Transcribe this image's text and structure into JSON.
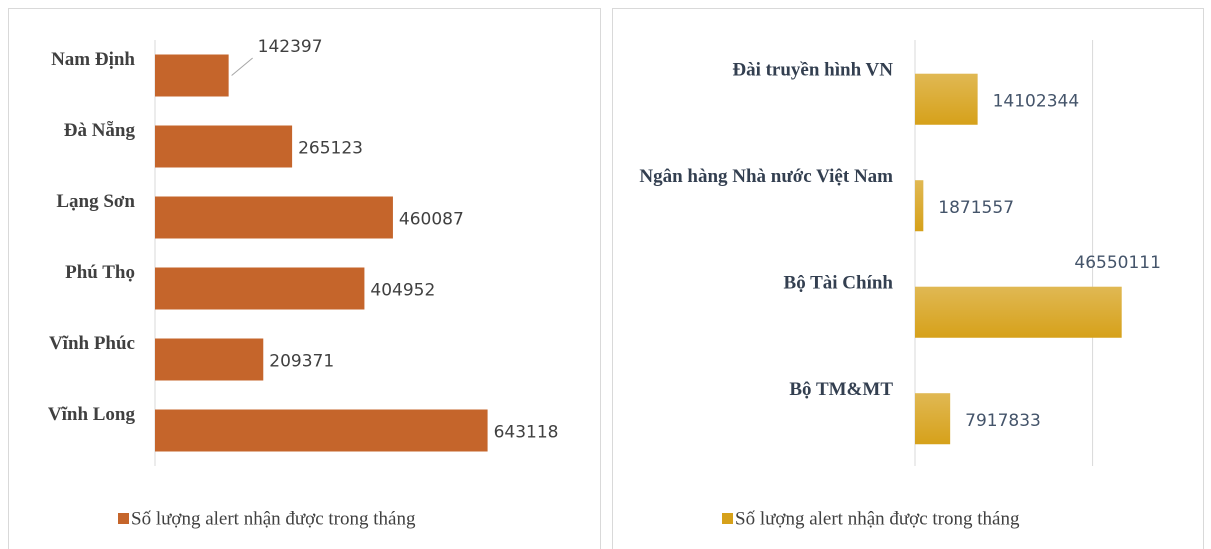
{
  "chart_data": [
    {
      "type": "bar",
      "orientation": "horizontal",
      "categories": [
        "Nam Định",
        "Đà Nẵng",
        "Lạng Sơn",
        "Phú Thọ",
        "Vĩnh Phúc",
        "Vĩnh Long"
      ],
      "series": [
        {
          "name": "Số lượng alert nhận được trong tháng",
          "color": "#c5652b",
          "values": [
            142397,
            265123,
            460087,
            404952,
            209371,
            643118
          ]
        }
      ],
      "xlim": [
        0,
        700000
      ],
      "grid": false,
      "legend": "bottom"
    },
    {
      "type": "bar",
      "orientation": "horizontal",
      "categories": [
        "Đài truyền hình VN",
        "Ngân hàng Nhà nước Việt Nam",
        "Bộ Tài Chính",
        "Bộ TM&MT"
      ],
      "series": [
        {
          "name": "Số lượng alert nhận được trong tháng",
          "color": "#d6a11a",
          "values": [
            14102344,
            1871557,
            46550111,
            7917833
          ]
        }
      ],
      "xlim": [
        0,
        50000000
      ],
      "xticks": [
        0,
        40000000
      ],
      "grid": true,
      "legend": "bottom"
    }
  ]
}
